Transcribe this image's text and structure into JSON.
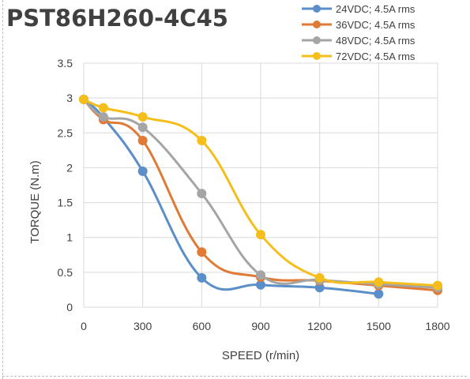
{
  "chart_data": {
    "type": "line",
    "title": "PST86H260-4C45",
    "xlabel": "SPEED (r/min)",
    "ylabel": "TORQUE (N.m)",
    "xlim": [
      0,
      1800
    ],
    "ylim": [
      0,
      3.5
    ],
    "x_ticks": [
      0,
      300,
      600,
      900,
      1200,
      1500,
      1800
    ],
    "y_ticks": [
      0,
      0.5,
      1,
      1.5,
      2,
      2.5,
      3,
      3.5
    ],
    "y_tick_labels": [
      "0",
      "0.5",
      "1",
      "1.5",
      "2",
      "2.5",
      "3",
      "3.5"
    ],
    "grid": "both",
    "smooth": true,
    "legend_position": "top-right",
    "series": [
      {
        "name": "24VDC; 4.5A rms",
        "color": "#5b8fc9",
        "x": [
          0,
          100,
          300,
          600,
          900,
          1200,
          1500
        ],
        "y": [
          2.98,
          2.72,
          1.95,
          0.42,
          0.32,
          0.28,
          0.19
        ]
      },
      {
        "name": "36VDC; 4.5A rms",
        "color": "#e07a34",
        "x": [
          0,
          100,
          300,
          600,
          900,
          1200,
          1500,
          1800
        ],
        "y": [
          2.98,
          2.69,
          2.39,
          0.79,
          0.43,
          0.38,
          0.31,
          0.24
        ]
      },
      {
        "name": "48VDC; 4.5A rms",
        "color": "#a5a5a5",
        "x": [
          0,
          100,
          300,
          600,
          900,
          1200,
          1500,
          1800
        ],
        "y": [
          2.98,
          2.73,
          2.58,
          1.63,
          0.46,
          0.39,
          0.33,
          0.28
        ]
      },
      {
        "name": "72VDC; 4.5A rms",
        "color": "#f5be1a",
        "x": [
          0,
          100,
          300,
          600,
          900,
          1200,
          1500,
          1800
        ],
        "y": [
          2.98,
          2.86,
          2.73,
          2.39,
          1.04,
          0.42,
          0.36,
          0.31
        ]
      }
    ]
  }
}
